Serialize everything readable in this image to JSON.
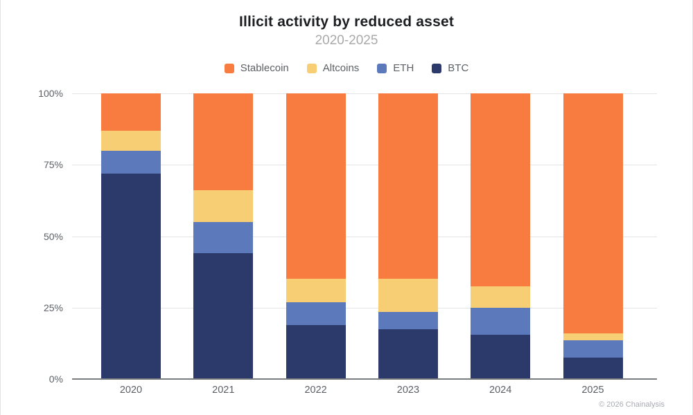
{
  "header": {
    "title": "Illicit activity by reduced asset",
    "subtitle": "2020-2025"
  },
  "legend": {
    "items": [
      {
        "label": "Stablecoin",
        "color": "#F87C40"
      },
      {
        "label": "Altcoins",
        "color": "#F8CE74"
      },
      {
        "label": "ETH",
        "color": "#5C79BB"
      },
      {
        "label": "BTC",
        "color": "#2B3A6B"
      }
    ]
  },
  "chart_data": {
    "type": "bar",
    "variant": "stacked-percentage-column",
    "title": "Illicit activity by reduced asset",
    "subtitle": "2020-2025",
    "categories": [
      "2020",
      "2021",
      "2022",
      "2023",
      "2024",
      "2025"
    ],
    "series": [
      {
        "name": "BTC",
        "color": "#2B3A6B",
        "values": [
          72,
          44,
          19,
          17.5,
          15.5,
          7.5
        ]
      },
      {
        "name": "ETH",
        "color": "#5C79BB",
        "values": [
          8,
          11,
          8,
          6,
          9.5,
          6
        ]
      },
      {
        "name": "Altcoins",
        "color": "#F8CE74",
        "values": [
          7,
          11,
          8,
          11.5,
          7.5,
          2.5
        ]
      },
      {
        "name": "Stablecoin",
        "color": "#F87C40",
        "values": [
          13,
          34,
          65,
          65,
          67.5,
          84
        ]
      }
    ],
    "stack_order_bottom_to_top": [
      "BTC",
      "ETH",
      "Altcoins",
      "Stablecoin"
    ],
    "xlabel": "",
    "ylabel": "",
    "ylim": [
      0,
      100
    ],
    "yticks": [
      "0%",
      "25%",
      "50%",
      "75%",
      "100%"
    ],
    "grid": true,
    "legend_position": "top"
  },
  "footer": {
    "credit": "© 2026 Chainalysis"
  }
}
